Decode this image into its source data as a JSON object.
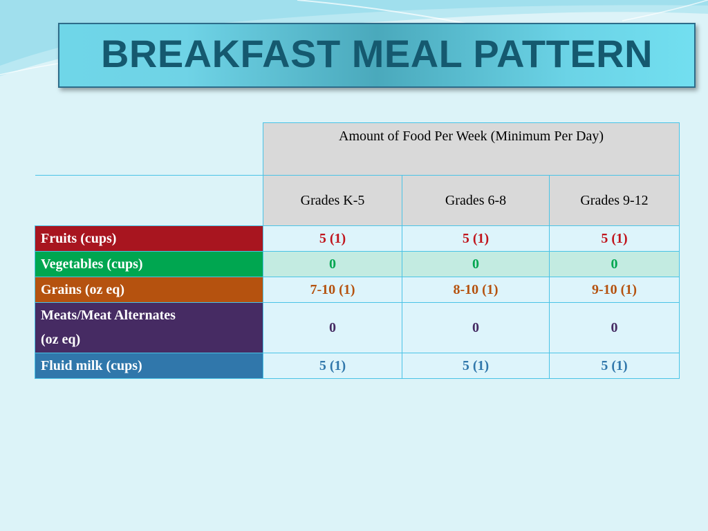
{
  "slide": {
    "title": "BREAKFAST MEAL PATTERN"
  },
  "table": {
    "group_header": "Amount of Food Per Week  (Minimum Per Day)",
    "grades": [
      "Grades K-5",
      "Grades 6-8",
      "Grades 9-12"
    ],
    "rows": [
      {
        "category": "Fruits (cups)",
        "category_color": "#a8151f",
        "value_color": "#c0141c",
        "values": [
          "5 (1)",
          "5 (1)",
          "5 (1)"
        ]
      },
      {
        "category": "Vegetables (cups)",
        "category_color": "#00a650",
        "value_color": "#00a650",
        "values": [
          "0",
          "0",
          "0"
        ]
      },
      {
        "category": "Grains (oz eq)",
        "category_color": "#b5520f",
        "value_color": "#b5520f",
        "values": [
          "7-10 (1)",
          "8-10 (1)",
          "9-10 (1)"
        ]
      },
      {
        "category_line1": "Meats/Meat Alternates",
        "category_line2": "(oz eq)",
        "category_color": "#462b63",
        "value_color": "#462b63",
        "values": [
          "0",
          "0",
          "0"
        ]
      },
      {
        "category": "Fluid milk (cups)",
        "category_color": "#3077ab",
        "value_color": "#3077ab",
        "values": [
          "5 (1)",
          "5 (1)",
          "5 (1)"
        ]
      }
    ]
  }
}
